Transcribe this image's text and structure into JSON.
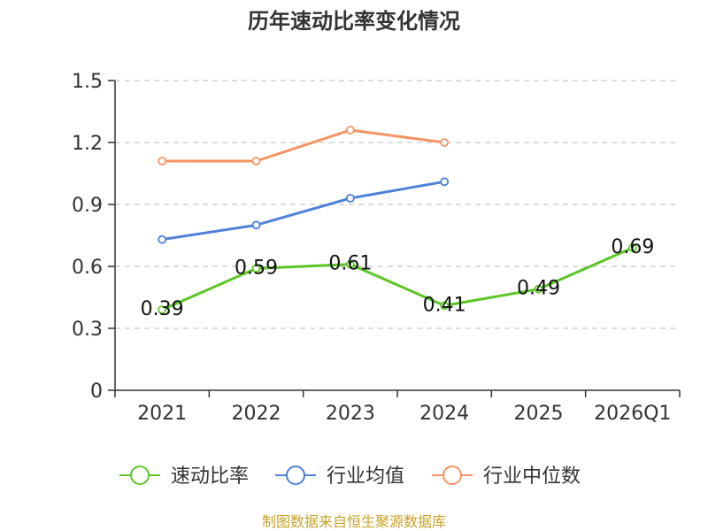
{
  "chart_data": {
    "type": "line",
    "title": "历年速动比率变化情况",
    "categories": [
      "2021",
      "2022",
      "2023",
      "2024",
      "2025",
      "2026Q1"
    ],
    "ylim": [
      0,
      1.5
    ],
    "yticks": [
      "0",
      "0.3",
      "0.6",
      "0.9",
      "1.2",
      "1.5"
    ],
    "grid": true,
    "legend_position": "bottom",
    "series": [
      {
        "name": "速动比率",
        "color": "#5cc626",
        "values": [
          0.39,
          0.59,
          0.61,
          0.41,
          0.49,
          0.69
        ],
        "show_labels": true
      },
      {
        "name": "行业均值",
        "color": "#4f81d9",
        "values": [
          0.73,
          0.8,
          0.93,
          1.01,
          null,
          null
        ],
        "show_labels": false
      },
      {
        "name": "行业中位数",
        "color": "#f59461",
        "values": [
          1.11,
          1.11,
          1.26,
          1.2,
          null,
          null
        ],
        "show_labels": false
      }
    ],
    "data_labels": [
      "0.39",
      "0.59",
      "0.61",
      "0.41",
      "0.49",
      "0.69"
    ],
    "source": "制图数据来自恒生聚源数据库"
  }
}
